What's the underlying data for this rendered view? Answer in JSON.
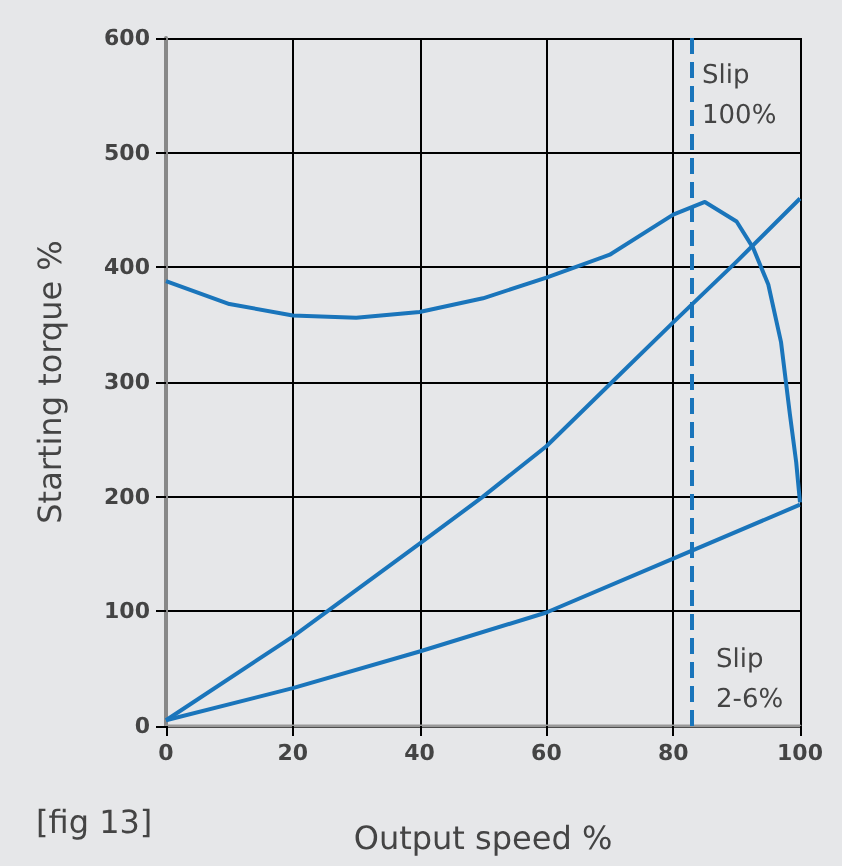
{
  "chart_data": {
    "type": "line",
    "xlabel": "Output speed %",
    "ylabel": "Starting torque %",
    "xlim": [
      0,
      100
    ],
    "xticks": [
      0,
      20,
      40,
      60,
      80,
      100
    ],
    "ylim": [
      0,
      600
    ],
    "yticks": [
      0,
      100,
      200,
      300,
      400,
      500,
      600
    ],
    "grid": true,
    "marker": "none",
    "line_style": "solid",
    "series": [
      {
        "color": "#1a75bb",
        "x": [
          0,
          10,
          20,
          30,
          40,
          50,
          60,
          70,
          80,
          85,
          90,
          92.6,
          95,
          97,
          98.4,
          99.4,
          100
        ],
        "values": [
          388,
          368,
          358,
          356,
          361,
          373,
          391,
          411,
          446,
          457,
          440,
          417,
          385,
          335,
          272,
          230,
          195
        ]
      },
      {
        "color": "#1a75bb",
        "x": [
          0,
          20,
          40,
          50,
          60,
          70,
          80,
          90,
          100
        ],
        "values": [
          5,
          78,
          159,
          200,
          244,
          298,
          352,
          405,
          460
        ]
      },
      {
        "color": "#1a75bb",
        "x": [
          0,
          20,
          40,
          60,
          80,
          100
        ],
        "values": [
          5,
          33,
          65,
          99,
          146,
          193
        ]
      }
    ],
    "ref_lines": [
      {
        "axis": "x",
        "value": 83,
        "color": "#1a75bb",
        "line_style": "dashed"
      }
    ],
    "annotations": [
      "Slip\n100%",
      "Slip\n2-6%",
      "[fig 13]"
    ]
  }
}
